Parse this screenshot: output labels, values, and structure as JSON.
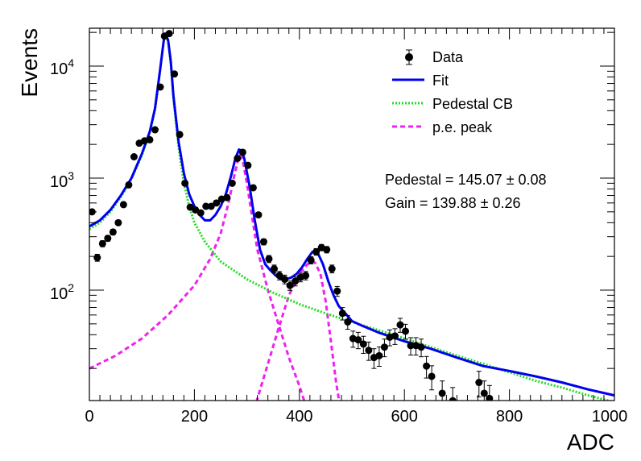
{
  "chart_data": {
    "type": "scatter",
    "xlabel": "ADC",
    "ylabel": "Events",
    "xlim": [
      0,
      1000
    ],
    "ylim": [
      10,
      20000
    ],
    "y_scale": "log",
    "grid": false,
    "legend_position": "top-right",
    "x_ticks": [
      "0",
      "200",
      "400",
      "600",
      "800",
      "1000"
    ],
    "y_ticks": [
      {
        "value": 100,
        "base": "10",
        "exp": "2"
      },
      {
        "value": 1000,
        "base": "10",
        "exp": "3"
      },
      {
        "value": 10000,
        "base": "10",
        "exp": "4"
      }
    ],
    "legend": [
      {
        "label": "Data",
        "style": "marker",
        "color": "#000000"
      },
      {
        "label": "Fit",
        "style": "solid",
        "color": "#0000ee"
      },
      {
        "label": "Pedestal CB",
        "style": "dotted",
        "color": "#22dd22"
      },
      {
        "label": "p.e. peak",
        "style": "dashed",
        "color": "#ee22ee"
      }
    ],
    "annotations": [
      "Pedestal = 145.07 ± 0.08",
      "Gain = 139.88 ± 0.26"
    ],
    "series": [
      {
        "name": "Data",
        "style": "points",
        "color": "#000000",
        "points": [
          [
            5,
            500
          ],
          [
            15,
            195
          ],
          [
            25,
            260
          ],
          [
            35,
            290
          ],
          [
            45,
            330
          ],
          [
            55,
            400
          ],
          [
            65,
            580
          ],
          [
            75,
            870
          ],
          [
            85,
            1550
          ],
          [
            95,
            2050
          ],
          [
            105,
            2150
          ],
          [
            115,
            2200
          ],
          [
            125,
            2700
          ],
          [
            135,
            6500
          ],
          [
            143,
            18500
          ],
          [
            152,
            19500
          ],
          [
            162,
            8500
          ],
          [
            172,
            2450
          ],
          [
            182,
            900
          ],
          [
            192,
            550
          ],
          [
            202,
            520
          ],
          [
            212,
            490
          ],
          [
            222,
            560
          ],
          [
            232,
            560
          ],
          [
            242,
            600
          ],
          [
            252,
            650
          ],
          [
            262,
            670
          ],
          [
            272,
            900
          ],
          [
            282,
            1500
          ],
          [
            292,
            1700
          ],
          [
            302,
            1300
          ],
          [
            312,
            820
          ],
          [
            322,
            470
          ],
          [
            332,
            270
          ],
          [
            342,
            190
          ],
          [
            352,
            155
          ],
          [
            362,
            135
          ],
          [
            372,
            125
          ],
          [
            382,
            110
          ],
          [
            392,
            120
          ],
          [
            402,
            130
          ],
          [
            412,
            135
          ],
          [
            422,
            185
          ],
          [
            432,
            220
          ],
          [
            442,
            240
          ],
          [
            452,
            230
          ],
          [
            462,
            155
          ],
          [
            472,
            98
          ],
          [
            482,
            62
          ],
          [
            492,
            52
          ],
          [
            502,
            37
          ],
          [
            512,
            36
          ],
          [
            522,
            33
          ],
          [
            532,
            29
          ],
          [
            542,
            25
          ],
          [
            552,
            26
          ],
          [
            562,
            31
          ],
          [
            572,
            38
          ],
          [
            582,
            39
          ],
          [
            592,
            49
          ],
          [
            602,
            43
          ],
          [
            612,
            32
          ],
          [
            622,
            32
          ],
          [
            632,
            31
          ],
          [
            642,
            21
          ],
          [
            652,
            17
          ],
          [
            672,
            12
          ],
          [
            692,
            10.3
          ],
          [
            742,
            15
          ],
          [
            752,
            12
          ],
          [
            762,
            10.8
          ]
        ]
      },
      {
        "name": "Fit",
        "style": "solid",
        "color": "#0000ee",
        "points": [
          [
            0,
            370
          ],
          [
            20,
            420
          ],
          [
            40,
            520
          ],
          [
            60,
            700
          ],
          [
            80,
            1000
          ],
          [
            100,
            1650
          ],
          [
            115,
            2600
          ],
          [
            125,
            4200
          ],
          [
            135,
            9500
          ],
          [
            142,
            17500
          ],
          [
            145,
            19500
          ],
          [
            150,
            17000
          ],
          [
            155,
            11000
          ],
          [
            160,
            5500
          ],
          [
            170,
            2100
          ],
          [
            180,
            1100
          ],
          [
            190,
            720
          ],
          [
            200,
            560
          ],
          [
            210,
            470
          ],
          [
            220,
            420
          ],
          [
            230,
            420
          ],
          [
            240,
            470
          ],
          [
            250,
            560
          ],
          [
            260,
            720
          ],
          [
            270,
            1050
          ],
          [
            278,
            1500
          ],
          [
            285,
            1800
          ],
          [
            290,
            1750
          ],
          [
            295,
            1500
          ],
          [
            305,
            850
          ],
          [
            315,
            420
          ],
          [
            325,
            230
          ],
          [
            335,
            170
          ],
          [
            345,
            150
          ],
          [
            355,
            135
          ],
          [
            365,
            125
          ],
          [
            375,
            125
          ],
          [
            385,
            130
          ],
          [
            395,
            140
          ],
          [
            405,
            160
          ],
          [
            415,
            190
          ],
          [
            425,
            220
          ],
          [
            435,
            215
          ],
          [
            445,
            170
          ],
          [
            455,
            120
          ],
          [
            465,
            90
          ],
          [
            475,
            72
          ],
          [
            490,
            60
          ],
          [
            500,
            53
          ],
          [
            520,
            48
          ],
          [
            550,
            42
          ],
          [
            600,
            35
          ],
          [
            650,
            30
          ],
          [
            700,
            25
          ],
          [
            750,
            21
          ],
          [
            800,
            19
          ],
          [
            850,
            17
          ],
          [
            900,
            15
          ],
          [
            950,
            13
          ],
          [
            1000,
            11.5
          ]
        ]
      },
      {
        "name": "Pedestal CB",
        "style": "dotted",
        "color": "#22dd22",
        "points": [
          [
            0,
            350
          ],
          [
            20,
            400
          ],
          [
            40,
            500
          ],
          [
            60,
            680
          ],
          [
            80,
            980
          ],
          [
            100,
            1600
          ],
          [
            115,
            2550
          ],
          [
            125,
            4100
          ],
          [
            135,
            9300
          ],
          [
            142,
            17400
          ],
          [
            145,
            19400
          ],
          [
            150,
            16500
          ],
          [
            155,
            10500
          ],
          [
            160,
            5200
          ],
          [
            170,
            1900
          ],
          [
            180,
            900
          ],
          [
            190,
            560
          ],
          [
            200,
            400
          ],
          [
            220,
            270
          ],
          [
            250,
            180
          ],
          [
            300,
            125
          ],
          [
            350,
            95
          ],
          [
            400,
            75
          ],
          [
            450,
            62
          ],
          [
            500,
            52
          ],
          [
            550,
            44
          ],
          [
            600,
            37
          ],
          [
            650,
            31
          ],
          [
            700,
            26
          ],
          [
            750,
            22
          ],
          [
            800,
            18.5
          ],
          [
            850,
            15.5
          ],
          [
            900,
            13.5
          ],
          [
            950,
            11.5
          ],
          [
            1000,
            10
          ]
        ]
      },
      {
        "name": "p.e. peak",
        "style": "dashed",
        "color": "#ee22ee",
        "segments": [
          [
            [
              0,
              20
            ],
            [
              50,
              26
            ],
            [
              100,
              37
            ],
            [
              150,
              60
            ],
            [
              200,
              110
            ],
            [
              230,
              190
            ],
            [
              250,
              320
            ],
            [
              265,
              600
            ],
            [
              275,
              1000
            ],
            [
              283,
              1450
            ],
            [
              287,
              1600
            ],
            [
              292,
              1450
            ],
            [
              300,
              900
            ],
            [
              310,
              450
            ],
            [
              320,
              230
            ],
            [
              340,
              100
            ],
            [
              360,
              50
            ],
            [
              380,
              25
            ],
            [
              400,
              14
            ],
            [
              410,
              10
            ]
          ],
          [
            [
              318,
              10
            ],
            [
              340,
              22
            ],
            [
              360,
              45
            ],
            [
              380,
              90
            ],
            [
              400,
              140
            ],
            [
              415,
              170
            ],
            [
              425,
              180
            ],
            [
              430,
              175
            ],
            [
              440,
              140
            ],
            [
              450,
              80
            ],
            [
              460,
              35
            ],
            [
              470,
              15
            ],
            [
              476,
              10
            ]
          ]
        ]
      }
    ]
  }
}
